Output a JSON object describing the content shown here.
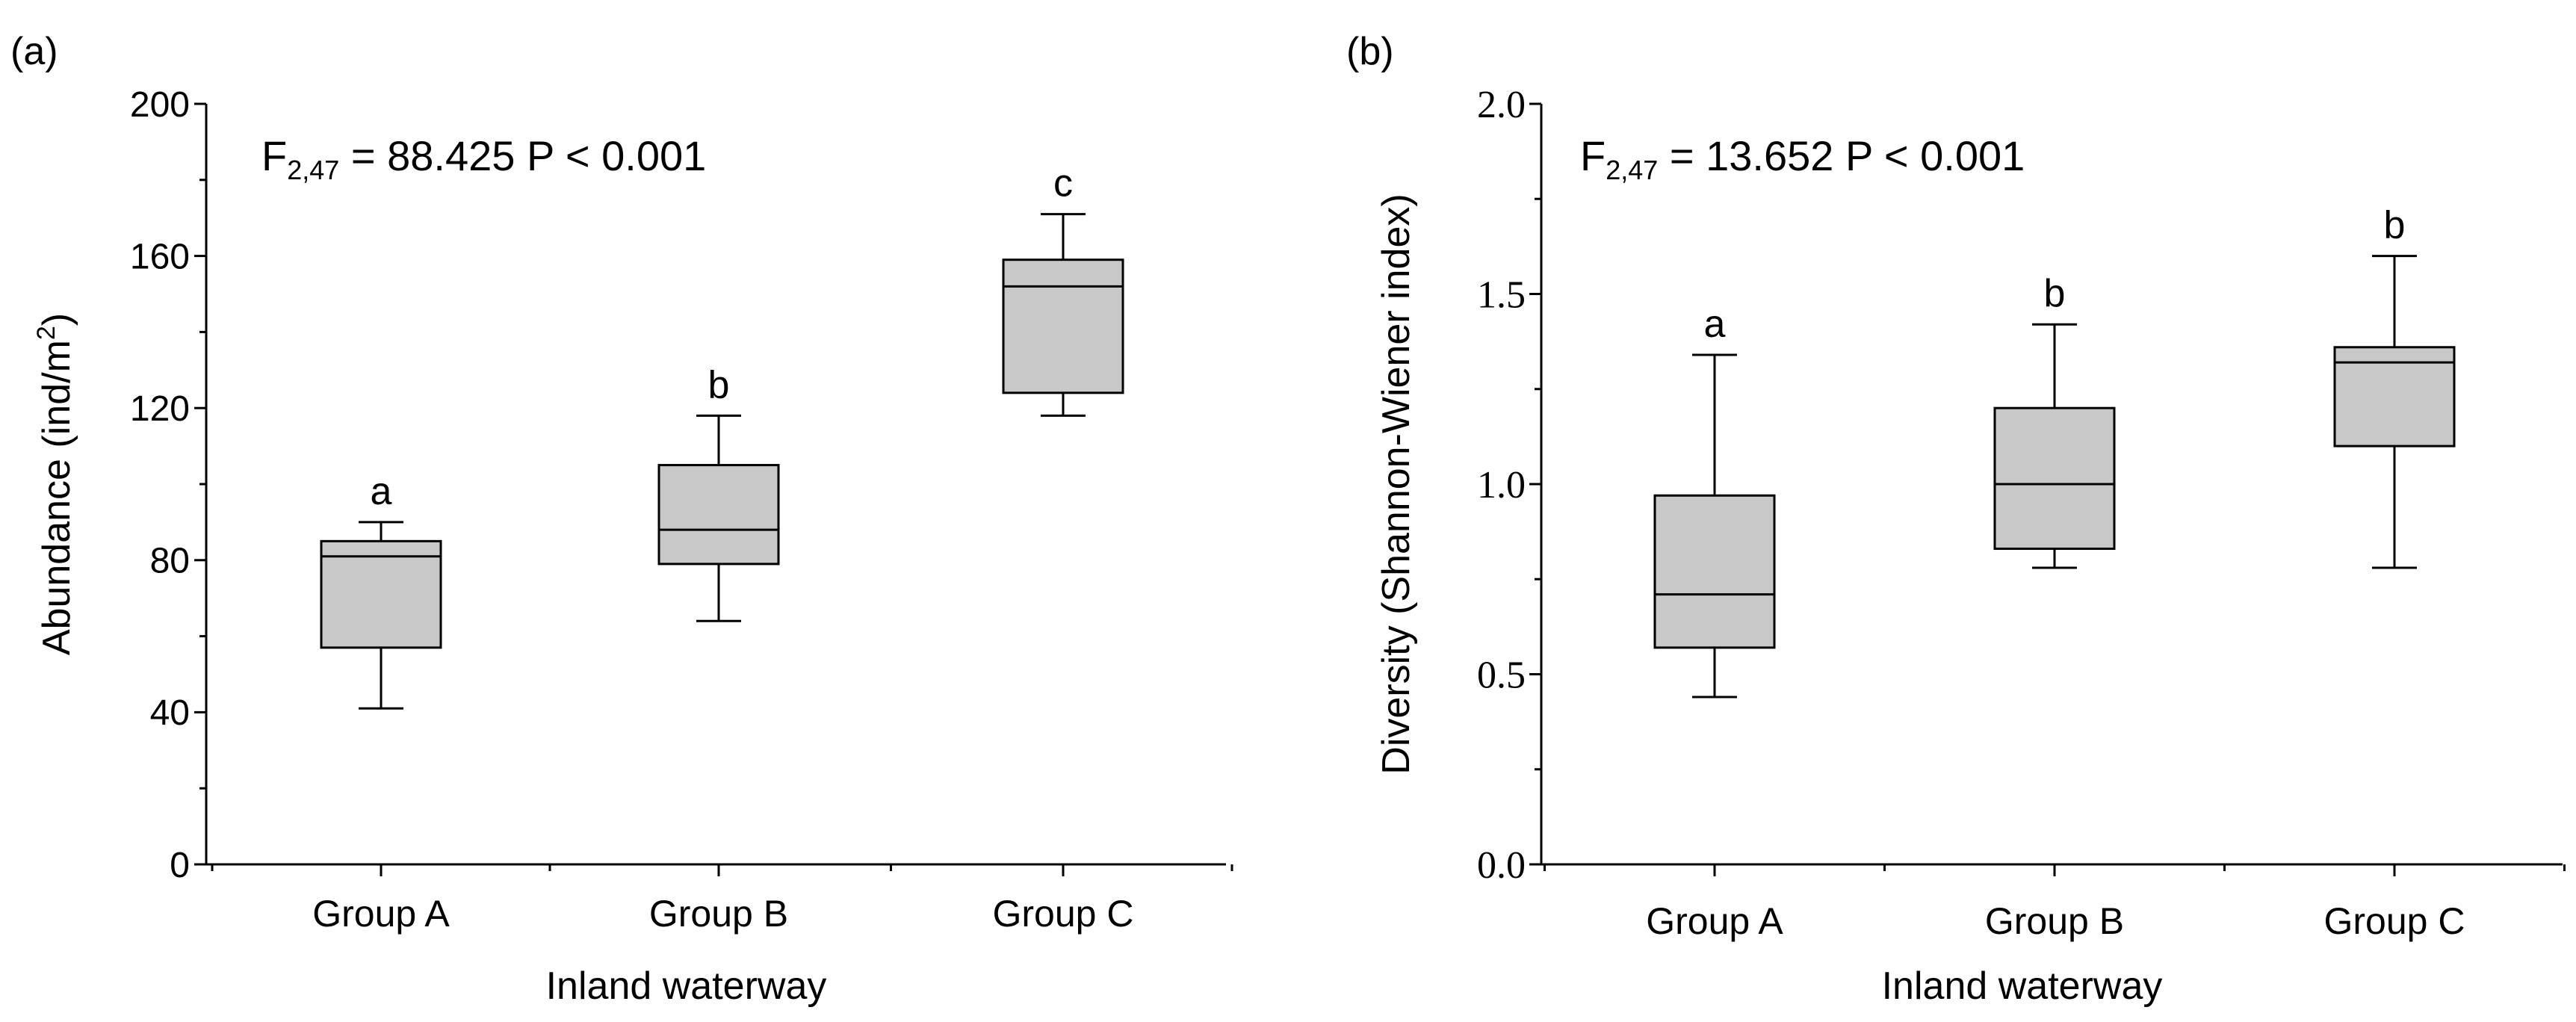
{
  "chart_data": [
    {
      "type": "box",
      "panel_label": "(a)",
      "xlabel": "Inland waterway",
      "ylabel": "Abundance (ind/m",
      "ylabel_sup": "2",
      "ylabel_close": ")",
      "ylim": [
        0,
        200
      ],
      "yticks": [
        0,
        40,
        80,
        120,
        160,
        200
      ],
      "stat": {
        "prefix": "F",
        "subscript": "2,47",
        "text": " = 88.425 P < 0.001"
      },
      "categories": [
        "Group A",
        "Group B",
        "Group C"
      ],
      "boxes": [
        {
          "name": "Group A",
          "min": 41,
          "q1": 57,
          "median": 81,
          "q3": 85,
          "max": 90,
          "letter": "a"
        },
        {
          "name": "Group B",
          "min": 64,
          "q1": 79,
          "median": 88,
          "q3": 105,
          "max": 118,
          "letter": "b"
        },
        {
          "name": "Group C",
          "min": 118,
          "q1": 124,
          "median": 152,
          "q3": 159,
          "max": 171,
          "letter": "c"
        }
      ]
    },
    {
      "type": "box",
      "panel_label": "(b)",
      "xlabel": "Inland waterway",
      "ylabel": "Diversity (Shannon-Wiener index)",
      "ylim": [
        0,
        2
      ],
      "yticks": [
        0,
        0.5,
        1.0,
        1.5,
        2.0
      ],
      "ytick_labels": [
        "0.0",
        "0.5",
        "1.0",
        "1.5",
        "2.0"
      ],
      "stat": {
        "prefix": "F",
        "subscript": "2,47",
        "text": " = 13.652 P < 0.001"
      },
      "categories": [
        "Group A",
        "Group B",
        "Group C"
      ],
      "boxes": [
        {
          "name": "Group A",
          "min": 0.44,
          "q1": 0.57,
          "median": 0.71,
          "q3": 0.97,
          "max": 1.34,
          "letter": "a"
        },
        {
          "name": "Group B",
          "min": 0.78,
          "q1": 0.83,
          "median": 1.0,
          "q3": 1.2,
          "max": 1.42,
          "letter": "b"
        },
        {
          "name": "Group C",
          "min": 0.78,
          "q1": 1.1,
          "median": 1.32,
          "q3": 1.36,
          "max": 1.6,
          "letter": "b"
        }
      ]
    }
  ],
  "colors": {
    "box_fill": "#c8c8c8",
    "line": "#000000"
  }
}
